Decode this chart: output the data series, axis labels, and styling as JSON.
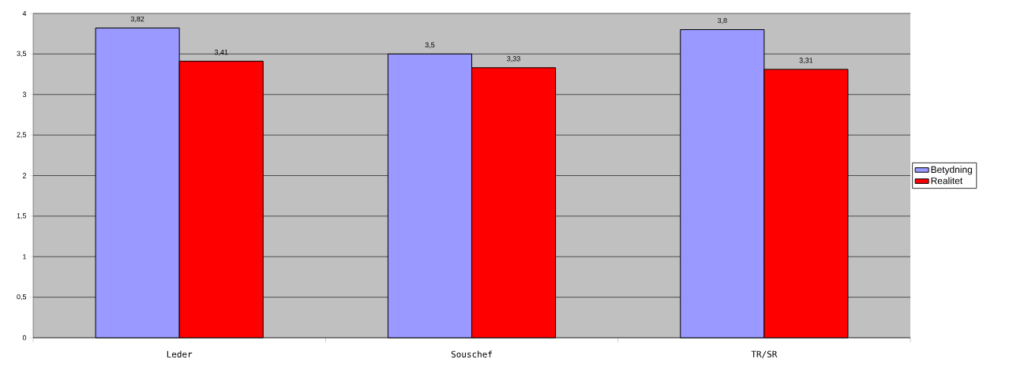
{
  "chart_data": {
    "type": "bar",
    "categories": [
      "Leder",
      "Souschef",
      "TR/SR"
    ],
    "series": [
      {
        "name": "Betydning",
        "color": "#9999ff",
        "values": [
          3.82,
          3.5,
          3.8
        ],
        "value_labels": [
          "3,82",
          "3,5",
          "3,8"
        ]
      },
      {
        "name": "Realitet",
        "color": "#ff0000",
        "values": [
          3.41,
          3.33,
          3.31
        ],
        "value_labels": [
          "3,41",
          "3,33",
          "3,31"
        ]
      }
    ],
    "ylim": [
      0,
      4
    ],
    "yticks": [
      0,
      {
        "value": 0.5,
        "label": "0,5"
      },
      1,
      {
        "value": 1.5,
        "label": "1,5"
      },
      2,
      {
        "value": 2.5,
        "label": "2,5"
      },
      3,
      {
        "value": 3.5,
        "label": "3,5"
      },
      4
    ],
    "grid": "y",
    "legend": "right"
  }
}
